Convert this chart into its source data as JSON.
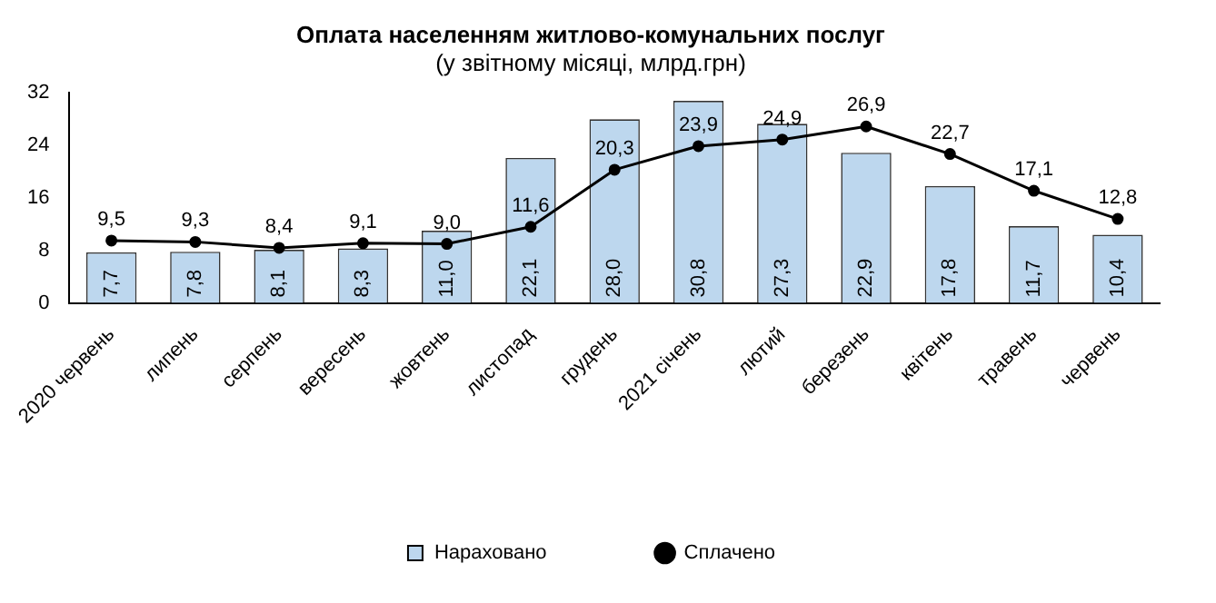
{
  "chart_data": {
    "type": "bar",
    "title": "Оплата населенням житлово-комунальних послуг",
    "subtitle": "(у звітному місяці, млрд.грн)",
    "categories": [
      "2020 червень",
      "липень",
      "серпень",
      "вересень",
      "жовтень",
      "листопад",
      "грудень",
      "2021 січень",
      "лютий",
      "березень",
      "квітень",
      "травень",
      "червень"
    ],
    "series": [
      {
        "name": "Нараховано",
        "color": "#bdd7ee",
        "values": [
          7.7,
          7.8,
          8.1,
          8.3,
          11.0,
          22.1,
          28.0,
          30.8,
          27.3,
          22.9,
          17.8,
          11.7,
          10.4
        ],
        "value_labels": [
          "7,7",
          "7,8",
          "8,1",
          "8,3",
          "11,0",
          "22,1",
          "28,0",
          "30,8",
          "27,3",
          "22,9",
          "17,8",
          "11,7",
          "10,4"
        ]
      },
      {
        "name": "Сплачено",
        "type": "line",
        "color": "#000000",
        "marker": "circle",
        "values": [
          9.5,
          9.3,
          8.4,
          9.1,
          9.0,
          11.6,
          20.3,
          23.9,
          24.9,
          26.9,
          22.7,
          17.1,
          12.8
        ],
        "value_labels": [
          "9,5",
          "9,3",
          "8,4",
          "9,1",
          "9,0",
          "11,6",
          "20,3",
          "23,9",
          "24,9",
          "26,9",
          "22,7",
          "17,1",
          "12,8"
        ]
      }
    ],
    "ylim": [
      0,
      32
    ],
    "yticks": [
      0,
      8,
      16,
      24,
      32
    ],
    "grid": false,
    "legend": "bottom"
  }
}
